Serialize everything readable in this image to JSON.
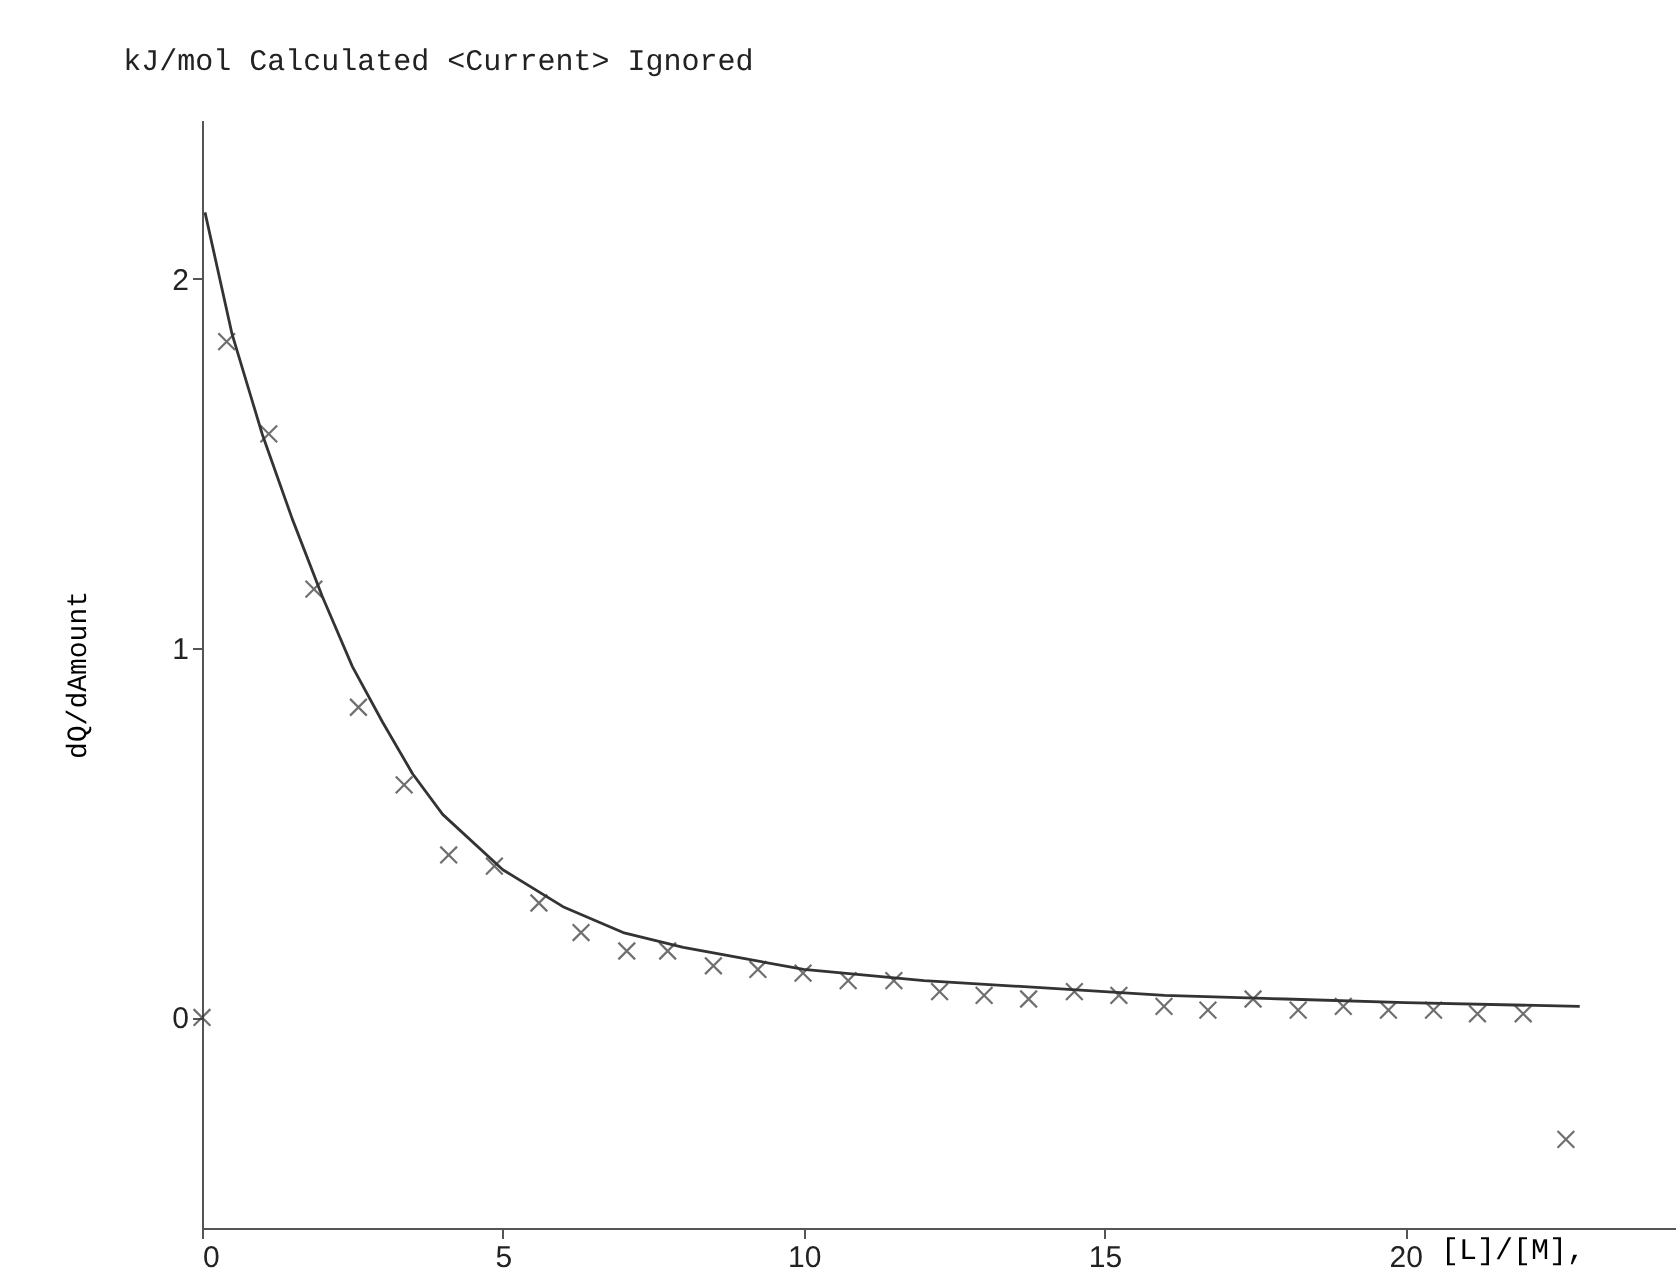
{
  "chart_data": {
    "type": "scatter",
    "title": "kJ/mol   Calculated <Current> Ignored",
    "xlabel": "[L]/[M],",
    "ylabel": "dQ/dAmount",
    "xlim": [
      0,
      24.5
    ],
    "ylim": [
      -0.57,
      2.43
    ],
    "xticks": [
      0,
      5,
      10,
      15,
      20
    ],
    "yticks": [
      0,
      1,
      2
    ],
    "grid": false,
    "legend": false,
    "marker": "cross",
    "series": [
      {
        "color": "#333333",
        "x": [
          0,
          0.41,
          1.11,
          1.86,
          2.6,
          3.36,
          4.1,
          4.86,
          5.6,
          6.3,
          7.06,
          7.74,
          8.5,
          9.24,
          9.99,
          10.74,
          11.5,
          12.26,
          13.0,
          13.74,
          14.5,
          15.24,
          15.99,
          16.72,
          17.47,
          18.22,
          18.97,
          19.72,
          20.47,
          21.2,
          21.96,
          22.67
        ],
        "values": [
          0,
          1.83,
          1.58,
          1.16,
          0.84,
          0.63,
          0.44,
          0.41,
          0.31,
          0.23,
          0.18,
          0.18,
          0.14,
          0.13,
          0.12,
          0.1,
          0.1,
          0.07,
          0.06,
          0.05,
          0.07,
          0.06,
          0.03,
          0.02,
          0.05,
          0.02,
          0.03,
          0.02,
          0.02,
          0.01,
          0.01,
          -0.33
        ]
      },
      {
        "type": "line",
        "color": "#333333",
        "marker": "none",
        "x": [
          0.05,
          0.5,
          1,
          1.5,
          2,
          2.5,
          3,
          3.5,
          4,
          5,
          6,
          7,
          8,
          9,
          10,
          12,
          14,
          16,
          18,
          20,
          22.9
        ],
        "values": [
          2.18,
          1.85,
          1.58,
          1.35,
          1.14,
          0.95,
          0.8,
          0.66,
          0.55,
          0.4,
          0.3,
          0.23,
          0.19,
          0.16,
          0.13,
          0.1,
          0.08,
          0.06,
          0.05,
          0.04,
          0.03
        ]
      }
    ]
  }
}
